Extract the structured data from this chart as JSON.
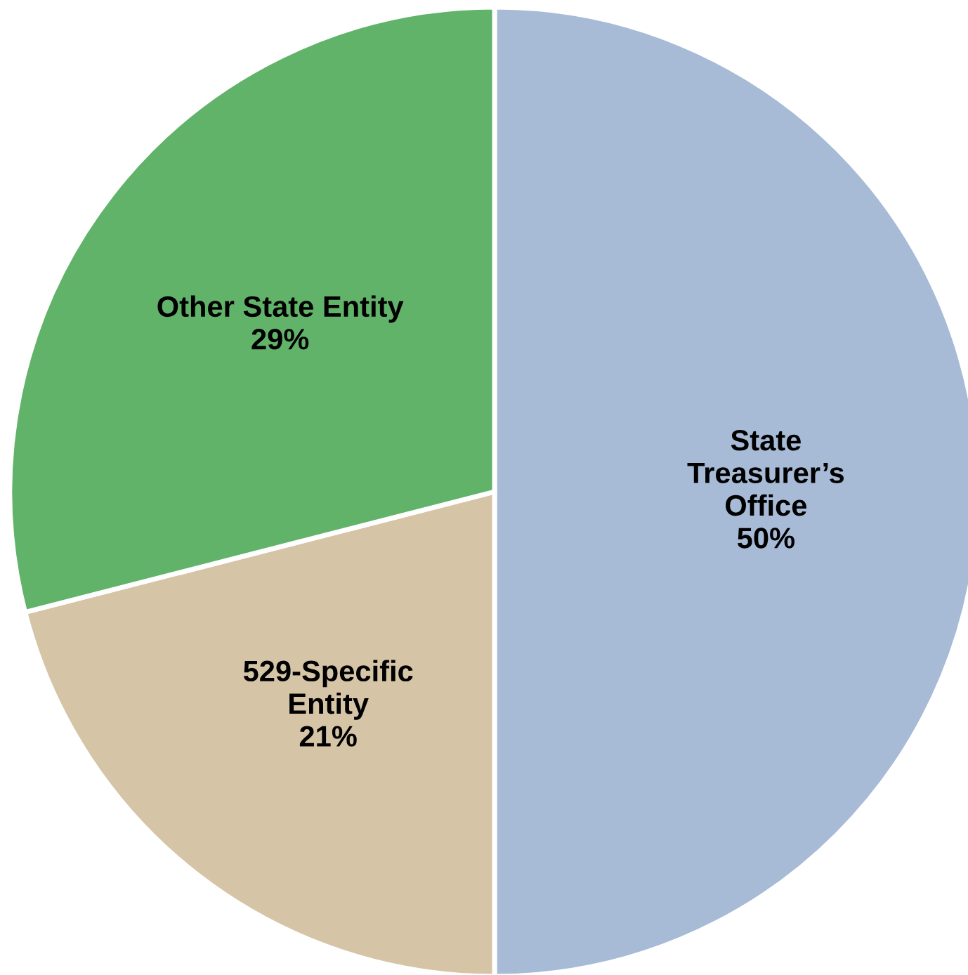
{
  "chart_data": {
    "type": "pie",
    "categories": [
      "State\nTreasurer’s\nOffice",
      "529-Specific\nEntity",
      "Other State Entity"
    ],
    "values": [
      50,
      21,
      29
    ],
    "colors": [
      "#a7bad6",
      "#d5c4a5",
      "#62b36a"
    ],
    "value_labels": [
      "50%",
      "21%",
      "29%"
    ],
    "legend": false
  }
}
